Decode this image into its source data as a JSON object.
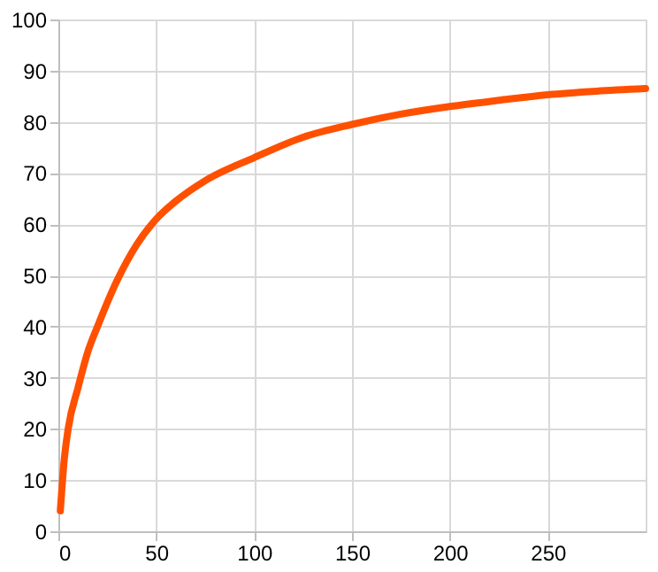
{
  "chart_data": {
    "type": "line",
    "x": [
      1,
      3,
      5,
      10,
      15,
      20,
      30,
      40,
      50,
      60,
      75,
      100,
      125,
      150,
      175,
      200,
      225,
      250,
      275,
      300
    ],
    "series": [
      {
        "color": "#ff5000",
        "values": [
          4,
          14,
          20,
          28,
          35,
          40,
          49,
          56,
          61,
          64.5,
          68.5,
          73,
          77,
          79.5,
          81.5,
          83,
          84.2,
          85.3,
          86,
          86.5
        ]
      }
    ],
    "xlim": [
      0,
      300
    ],
    "xticks": [
      0,
      50,
      100,
      150,
      200,
      250
    ],
    "ylim": [
      0,
      100
    ],
    "yticks": [
      0,
      10,
      20,
      30,
      40,
      50,
      60,
      70,
      80,
      90,
      100
    ],
    "grid": true,
    "marker": "none",
    "line_style": "solid"
  }
}
